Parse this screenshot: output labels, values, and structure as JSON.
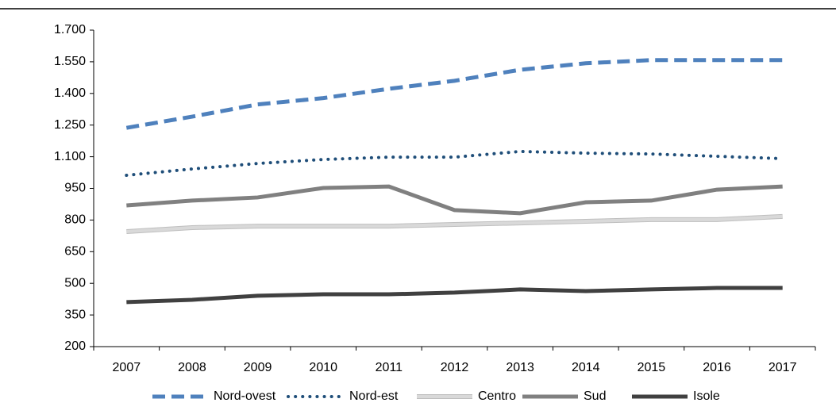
{
  "chart_data": {
    "type": "line",
    "categories": [
      "2007",
      "2008",
      "2009",
      "2010",
      "2011",
      "2012",
      "2013",
      "2014",
      "2015",
      "2016",
      "2017"
    ],
    "series": [
      {
        "name": "Nord-ovest",
        "color": "#4f81bd",
        "style": "dashed",
        "values": [
          1237,
          1290,
          1348,
          1378,
          1422,
          1460,
          1512,
          1543,
          1558,
          1558,
          1558
        ]
      },
      {
        "name": "Nord-est",
        "color": "#1f4e79",
        "style": "dotted",
        "values": [
          1012,
          1042,
          1068,
          1087,
          1098,
          1098,
          1125,
          1117,
          1113,
          1102,
          1091
        ]
      },
      {
        "name": "Centro",
        "color": "#d9d9d9",
        "style": "double",
        "values": [
          745,
          764,
          771,
          771,
          771,
          779,
          786,
          794,
          802,
          802,
          817
        ]
      },
      {
        "name": "Sud",
        "color": "#808080",
        "style": "solid",
        "values": [
          869,
          892,
          907,
          952,
          959,
          847,
          832,
          884,
          892,
          944,
          959
        ]
      },
      {
        "name": "Isole",
        "color": "#404040",
        "style": "solid",
        "values": [
          411,
          422,
          441,
          448,
          448,
          456,
          471,
          463,
          471,
          478,
          478
        ]
      }
    ],
    "ylim": [
      200,
      1700
    ],
    "yticks": [
      200,
      350,
      500,
      650,
      800,
      950,
      {
        "value": 1100,
        "label": "1.100"
      },
      {
        "value": 1250,
        "label": "1.250"
      },
      {
        "value": 1400,
        "label": "1.400"
      },
      {
        "value": 1550,
        "label": "1.550"
      },
      {
        "value": 1700,
        "label": "1.700"
      }
    ],
    "grid": false,
    "legend": "bottom"
  }
}
